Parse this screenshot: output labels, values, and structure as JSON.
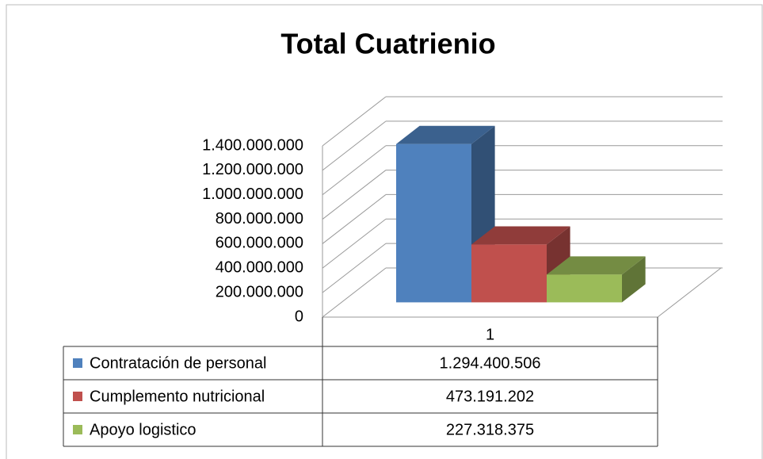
{
  "chart_data": {
    "type": "bar3d",
    "title": "Total Cuatrienio",
    "categories": [
      "1"
    ],
    "series": [
      {
        "name": "Contratación de personal",
        "color": "#4f81bd",
        "values": [
          1294400506
        ],
        "value_labels": [
          "1.294.400.506"
        ]
      },
      {
        "name": "Cumplemento nutricional",
        "color": "#c0504d",
        "values": [
          473191202
        ],
        "value_labels": [
          "473.191.202"
        ]
      },
      {
        "name": "Apoyo logistico",
        "color": "#9bbb59",
        "values": [
          227318375
        ],
        "value_labels": [
          "227.318.375"
        ]
      }
    ],
    "ylim": [
      0,
      1400000000
    ],
    "yticks": [
      0,
      {
        "value": 200000000,
        "label": "200.000.000"
      },
      {
        "value": 400000000,
        "label": "400.000.000"
      },
      {
        "value": 600000000,
        "label": "600.000.000"
      },
      {
        "value": 800000000,
        "label": "800.000.000"
      },
      {
        "value": 1000000000,
        "label": "1.000.000.000"
      },
      {
        "value": 1200000000,
        "label": "1.200.000.000"
      },
      {
        "value": 1400000000,
        "label": "1.400.000.000"
      }
    ],
    "grid": true,
    "legend": "table"
  }
}
